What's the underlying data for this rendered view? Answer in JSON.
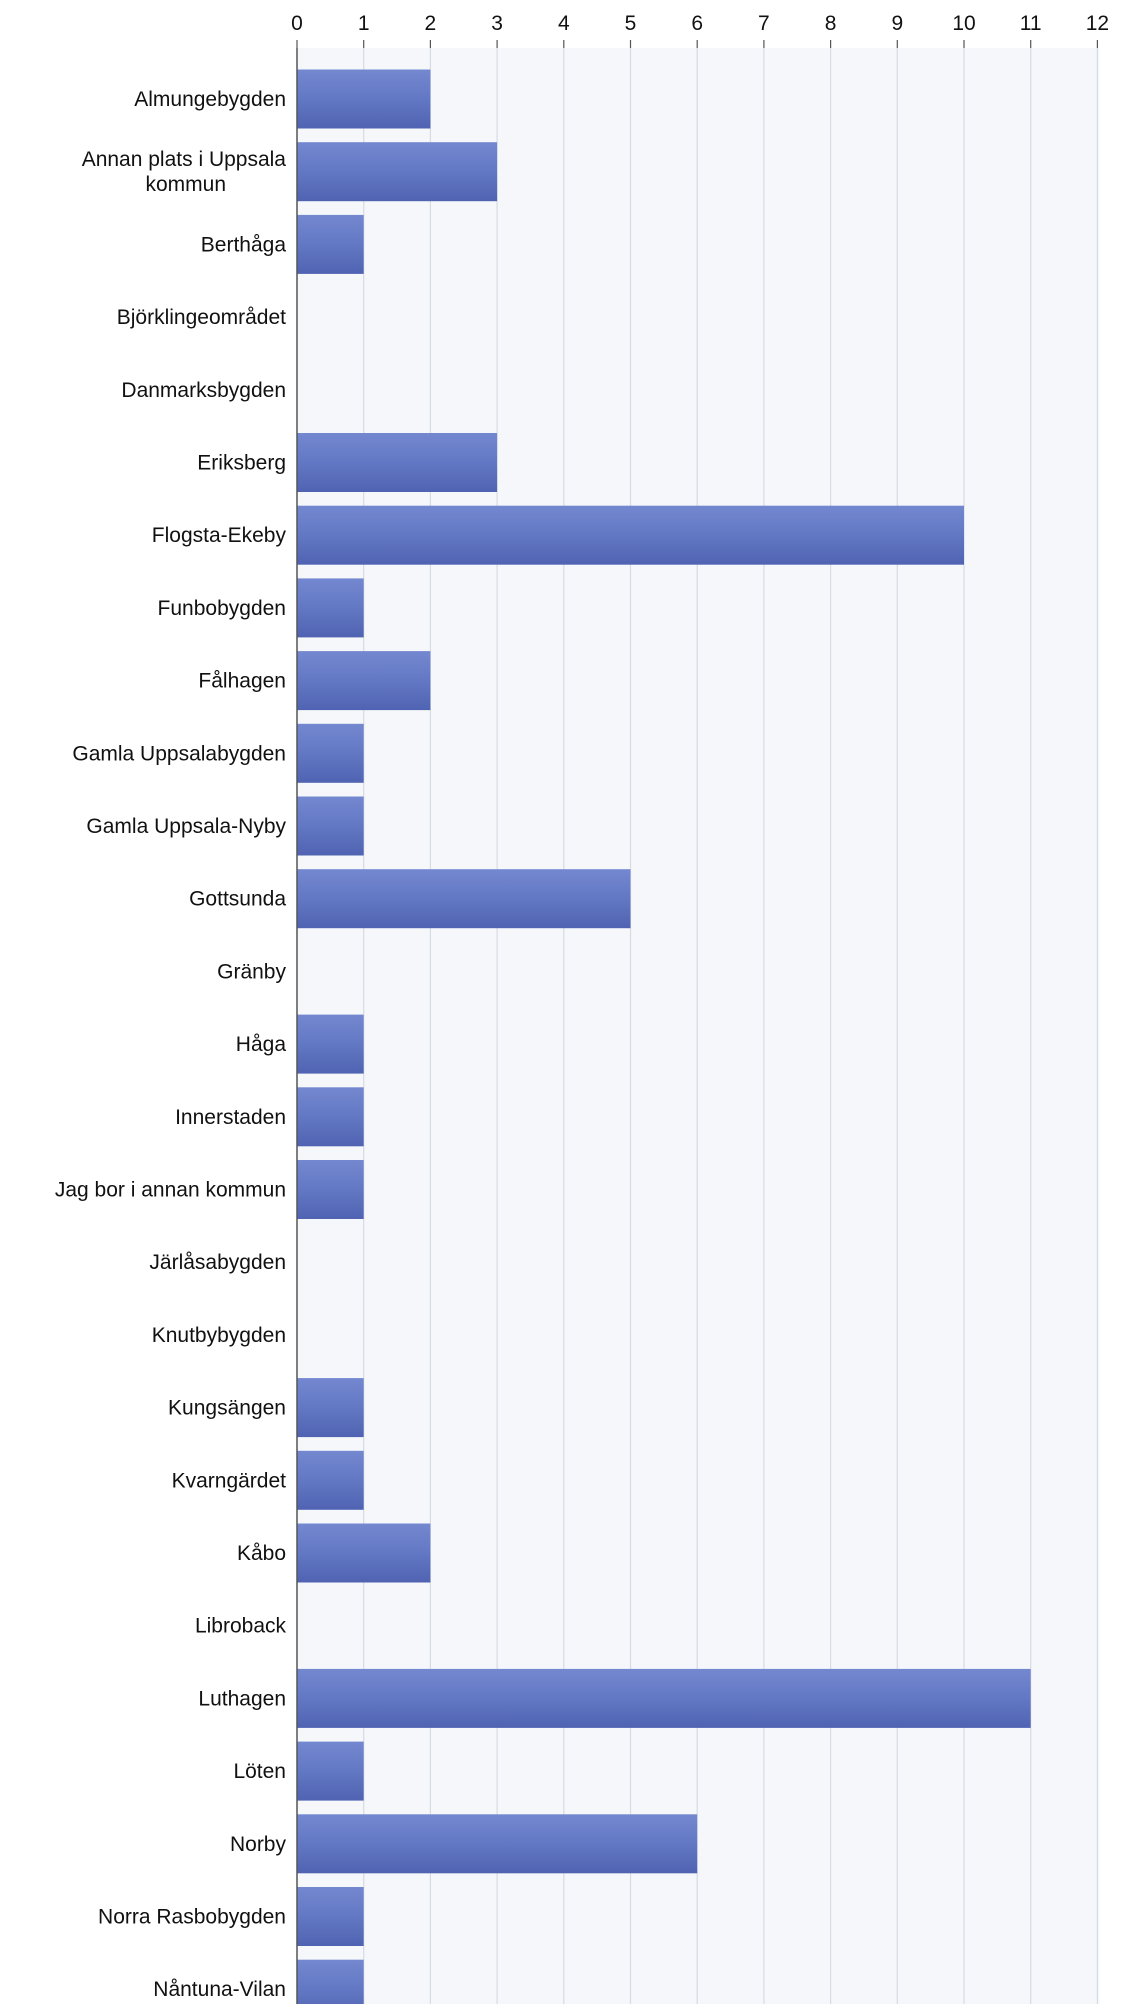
{
  "chart_data": {
    "type": "bar",
    "orientation": "horizontal",
    "x_axis_position": "top",
    "grid": true,
    "xlim": [
      0,
      12
    ],
    "xticks": [
      0,
      1,
      2,
      3,
      4,
      5,
      6,
      7,
      8,
      9,
      10,
      11,
      12
    ],
    "categories": [
      "Almungebygden",
      "Annan plats i Uppsala kommun",
      "Berthåga",
      "Björklingeområdet",
      "Danmarksbygden",
      "Eriksberg",
      "Flogsta-Ekeby",
      "Funbobygden",
      "Fålhagen",
      "Gamla Uppsalabygden",
      "Gamla Uppsala-Nyby",
      "Gottsunda",
      "Gränby",
      "Håga",
      "Innerstaden",
      "Jag bor i annan kommun",
      "Järlåsabygden",
      "Knutbybygden",
      "Kungsängen",
      "Kvarngärdet",
      "Kåbo",
      "Libroback",
      "Luthagen",
      "Löten",
      "Norby",
      "Norra Rasbobygden",
      "Nåntuna-Vilan"
    ],
    "values": [
      2,
      3,
      1,
      0,
      0,
      3,
      10,
      1,
      2,
      1,
      1,
      5,
      0,
      1,
      1,
      1,
      0,
      0,
      1,
      1,
      2,
      0,
      11,
      1,
      6,
      1,
      1
    ],
    "colors": {
      "bar": "#6378c4",
      "bar_top": "#7488d0",
      "bar_bottom": "#4f63b2",
      "grid": "#d6dbe4",
      "axis": "#555555",
      "plot_bg": "#f5f7fa"
    }
  }
}
